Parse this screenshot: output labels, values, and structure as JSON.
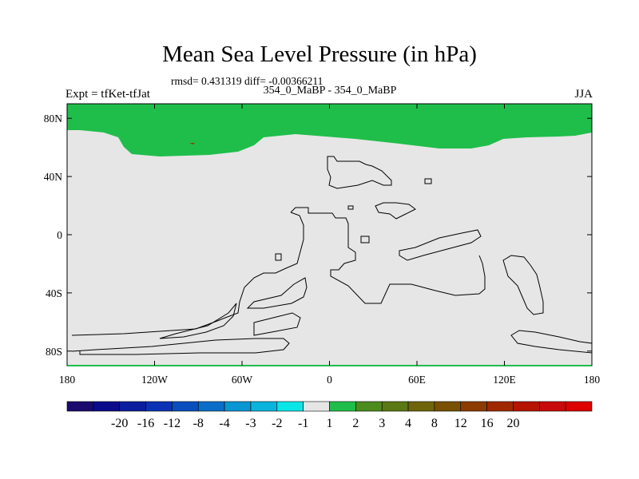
{
  "header": {
    "title": "Mean Sea Level Pressure (in hPa)",
    "stats": "rmsd= 0.431319 diff= -0.00366211",
    "subtitle": "354_0_MaBP - 354_0_MaBP",
    "left_label": "Expt = tfKet-tfJat",
    "right_label": "JJA"
  },
  "chart_data": {
    "type": "contour-map",
    "title": "Mean Sea Level Pressure (in hPa)",
    "x_ticks": [
      "180",
      "120W",
      "60W",
      "0",
      "60E",
      "120E",
      "180"
    ],
    "x_tick_values": [
      -180,
      -120,
      -60,
      0,
      60,
      120,
      180
    ],
    "y_ticks": [
      "80N",
      "40N",
      "0",
      "40S",
      "80S"
    ],
    "y_tick_values": [
      80,
      40,
      0,
      -40,
      -80
    ],
    "xlim": [
      -180,
      180
    ],
    "ylim": [
      -90,
      90
    ],
    "fields": [
      {
        "class": "1 to 2",
        "color": "#1fbe4a",
        "region": "north of roughly 55N to 70N (high latitudes)"
      },
      {
        "class": "-1 to 1",
        "color": "#e6e6e6",
        "region": "rest of globe"
      }
    ],
    "colorbar": {
      "colors": [
        "#1a0a6e",
        "#0a0a8a",
        "#0a1e9e",
        "#0a32b4",
        "#0a4ebe",
        "#0a6ec8",
        "#0a96d2",
        "#0ab4dc",
        "#0ae6e6",
        "#e6e6e6",
        "#1fbe4a",
        "#4c8c1e",
        "#5a7814",
        "#6e640a",
        "#785000",
        "#8c3c00",
        "#a02800",
        "#b41400",
        "#c80a0a",
        "#dc0000"
      ],
      "labels": [
        "-20",
        "-16",
        "-12",
        "-8",
        "-4",
        "-3",
        "-2",
        "-1",
        "1",
        "2",
        "3",
        "4",
        "8",
        "12",
        "16",
        "20"
      ]
    }
  }
}
